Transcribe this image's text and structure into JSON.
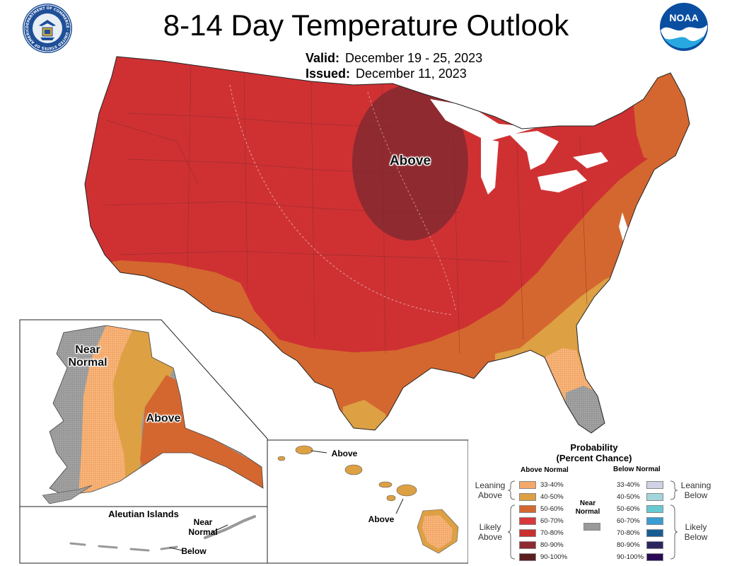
{
  "header": {
    "title": "8-14 Day Temperature Outlook",
    "valid_label": "Valid:",
    "valid_value": "December 19 - 25, 2023",
    "issued_label": "Issued:",
    "issued_value": "December 11, 2023"
  },
  "logos": {
    "commerce": "DEPARTMENT OF COMMERCE · UNITED STATES OF AMERICA",
    "noaa": "NOAA"
  },
  "map_labels": {
    "conus_above": "Above",
    "alaska_near_1": "Near",
    "alaska_near_2": "Normal",
    "alaska_above": "Above",
    "aleutian_title": "Aleutian Islands",
    "aleutian_near_1": "Near",
    "aleutian_near_2": "Normal",
    "aleutian_below": "Below",
    "hawaii_above_1": "Above",
    "hawaii_above_2": "Above"
  },
  "legend": {
    "title": "Probability",
    "subtitle": "(Percent Chance)",
    "above_header": "Above Normal",
    "below_header": "Below Normal",
    "near_1": "Near",
    "near_2": "Normal",
    "leaning_above_1": "Leaning",
    "leaning_above_2": "Above",
    "likely_above_1": "Likely",
    "likely_above_2": "Above",
    "leaning_below_1": "Leaning",
    "leaning_below_2": "Below",
    "likely_below_1": "Likely",
    "likely_below_2": "Below",
    "above": [
      {
        "range": "33-40%",
        "color": "#f4a96a"
      },
      {
        "range": "40-50%",
        "color": "#dda043"
      },
      {
        "range": "50-60%",
        "color": "#d4672f"
      },
      {
        "range": "60-70%",
        "color": "#d8383a"
      },
      {
        "range": "70-80%",
        "color": "#c9302f"
      },
      {
        "range": "80-90%",
        "color": "#8f2a30"
      },
      {
        "range": "90-100%",
        "color": "#5a1e1e"
      }
    ],
    "below": [
      {
        "range": "33-40%",
        "color": "#cfd3e3"
      },
      {
        "range": "40-50%",
        "color": "#a3d6dc"
      },
      {
        "range": "50-60%",
        "color": "#66cad3"
      },
      {
        "range": "60-70%",
        "color": "#3a9dd2"
      },
      {
        "range": "70-80%",
        "color": "#165d94"
      },
      {
        "range": "80-90%",
        "color": "#2c2660"
      },
      {
        "range": "90-100%",
        "color": "#2a0a55"
      }
    ],
    "near_color": "#999999"
  },
  "colors": {
    "red": "#cf3133",
    "dark_red": "#8f2a30",
    "orange": "#d4672f",
    "gold": "#dda043",
    "light_orange": "#f4a96a",
    "gray": "#999999"
  }
}
